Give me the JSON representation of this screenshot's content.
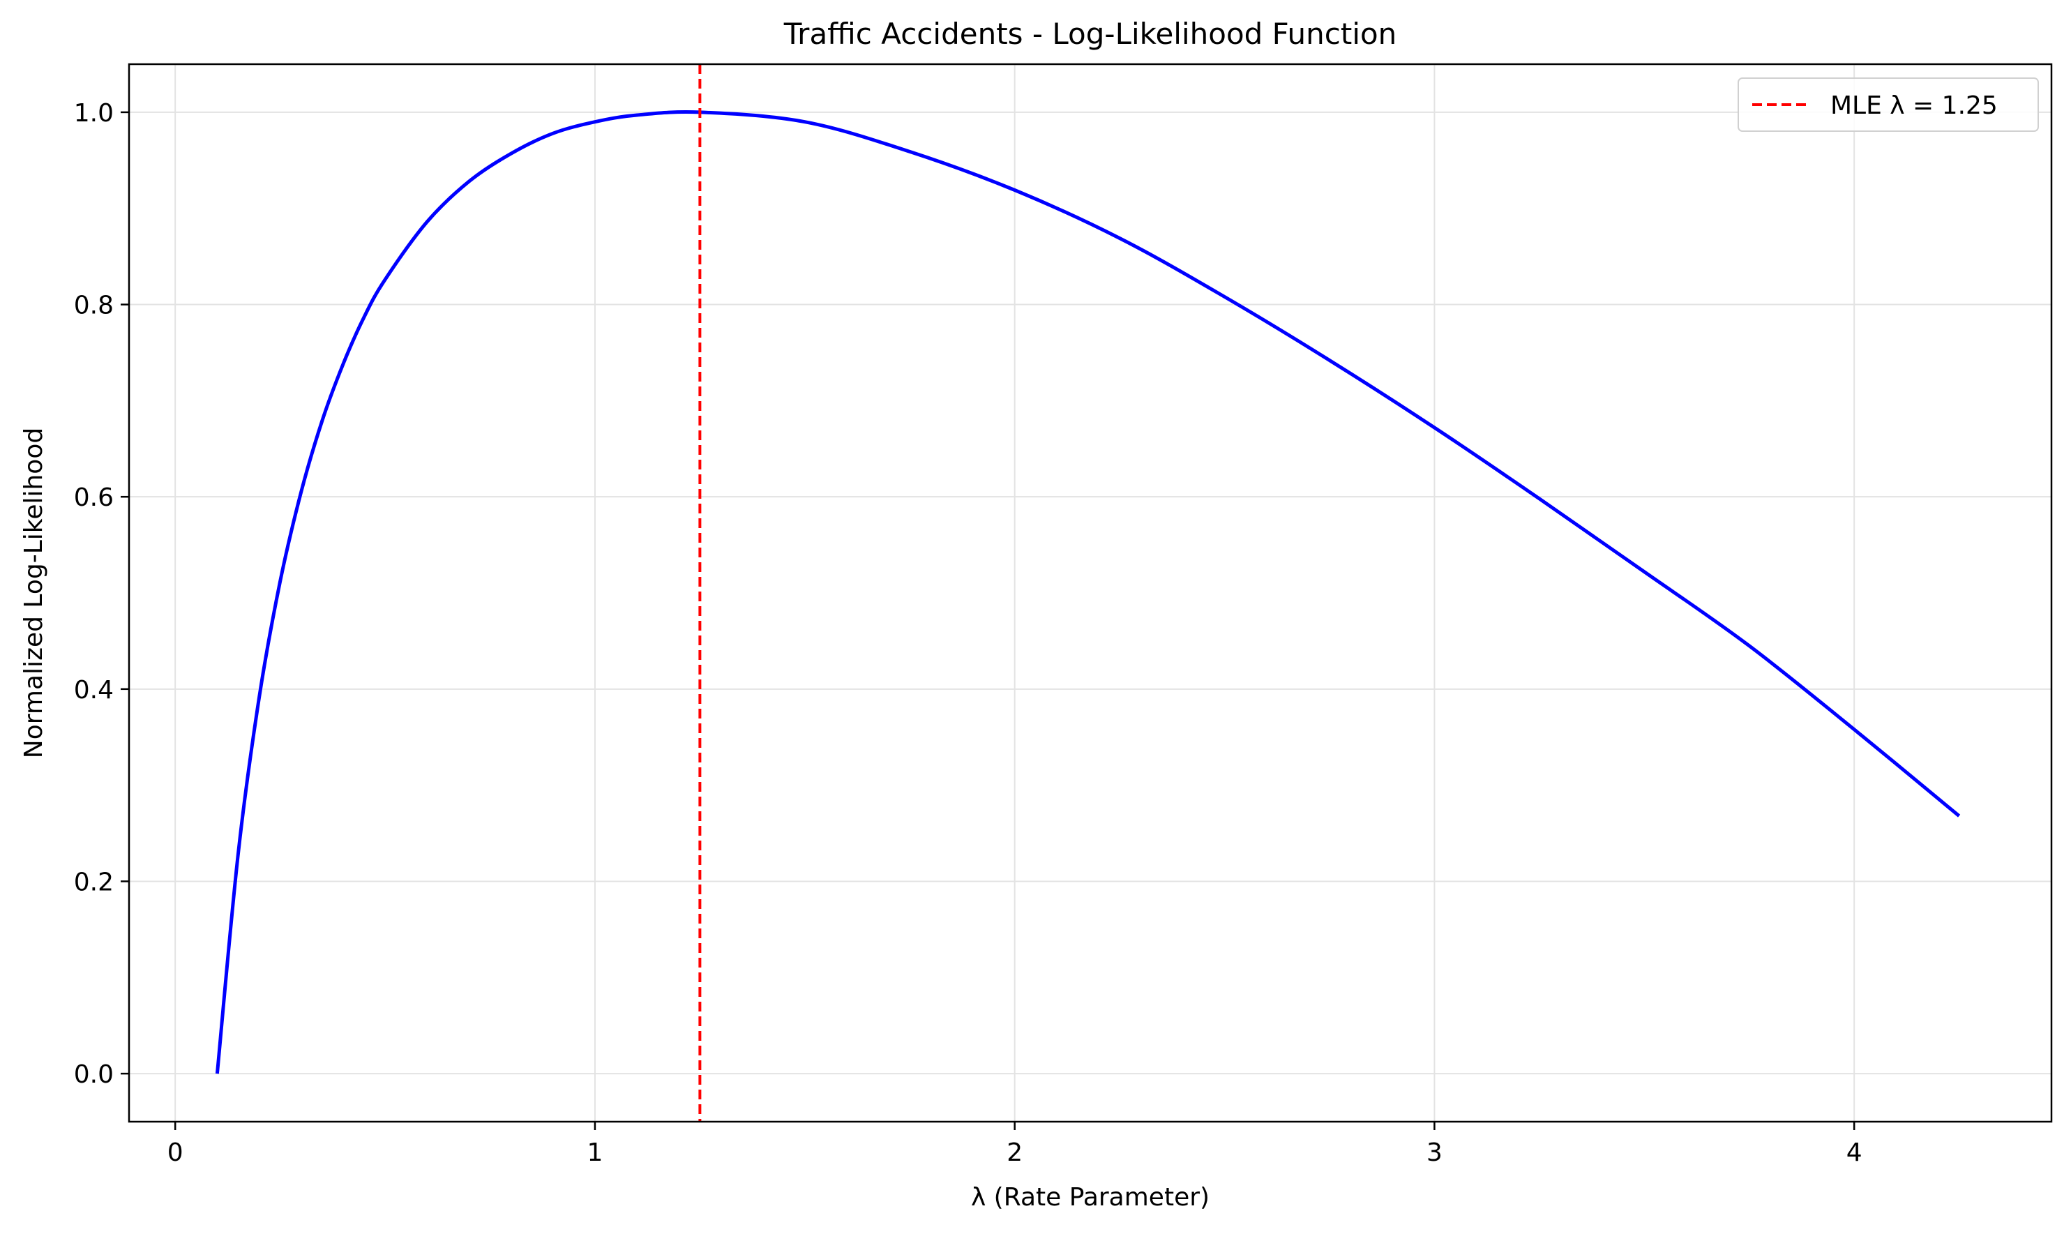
{
  "chart_data": {
    "type": "line",
    "title": "Traffic Accidents - Log-Likelihood Function",
    "xlabel": "λ (Rate Parameter)",
    "ylabel": "Normalized Log-Likelihood",
    "xlim": [
      -0.11,
      4.47
    ],
    "ylim": [
      -0.05,
      1.05
    ],
    "xticks": [
      0,
      1,
      2,
      3,
      4
    ],
    "xtick_labels": [
      "0",
      "1",
      "2",
      "3",
      "4"
    ],
    "yticks": [
      0.0,
      0.2,
      0.4,
      0.6,
      0.8,
      1.0
    ],
    "ytick_labels": [
      "0.0",
      "0.2",
      "0.4",
      "0.6",
      "0.8",
      "1.0"
    ],
    "grid": true,
    "legend": {
      "placement": "top-right",
      "entries": [
        {
          "label": "MLE λ = 1.25",
          "style": "dashed",
          "color": "#ff0000"
        }
      ]
    },
    "series": [
      {
        "style": "solid",
        "color": "#0000ff",
        "x": [
          0.1,
          0.15,
          0.2,
          0.25,
          0.3,
          0.35,
          0.4,
          0.45,
          0.5,
          0.6,
          0.7,
          0.8,
          0.9,
          1.0,
          1.1,
          1.25,
          1.5,
          1.75,
          2.0,
          2.25,
          2.5,
          2.75,
          3.0,
          3.25,
          3.5,
          3.75,
          4.0,
          4.25
        ],
        "y": [
          0.0,
          0.229,
          0.391,
          0.512,
          0.605,
          0.679,
          0.738,
          0.787,
          0.826,
          0.886,
          0.928,
          0.957,
          0.978,
          0.99,
          0.997,
          1.0,
          0.99,
          0.959,
          0.919,
          0.869,
          0.808,
          0.742,
          0.672,
          0.598,
          0.522,
          0.445,
          0.358,
          0.268
        ]
      }
    ],
    "vline": {
      "x": 1.25,
      "color": "#ff0000",
      "style": "dashed",
      "label": "MLE λ = 1.25"
    }
  }
}
